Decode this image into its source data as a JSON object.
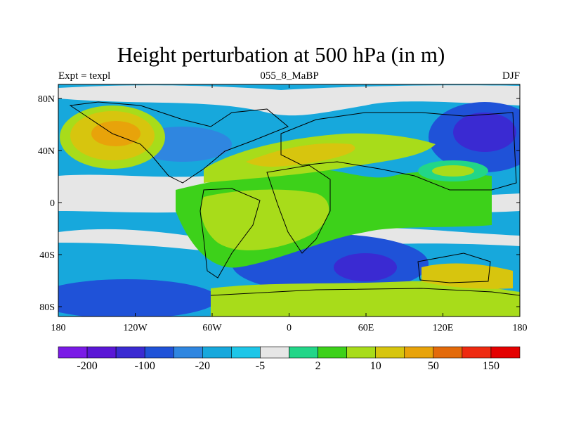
{
  "header": {
    "title": "Height perturbation at 500 hPa (in m)",
    "left": "Expt = texpl",
    "center": "055_8_MaBP",
    "right": "DJF"
  },
  "map": {
    "lon_ticks": [
      "180",
      "120W",
      "60W",
      "0",
      "60E",
      "120E",
      "180"
    ],
    "lat_ticks": [
      "80N",
      "40N",
      "0",
      "40S",
      "80S"
    ],
    "lon_range": [
      -180,
      180
    ],
    "lat_range": [
      -90,
      90
    ]
  },
  "colorbar": {
    "colors": [
      "#7a1ae6",
      "#5a16d6",
      "#3a2ad2",
      "#1f52d8",
      "#2f86e0",
      "#17a8dc",
      "#1ec6e8",
      "#e6e6e6",
      "#22d688",
      "#3dd11a",
      "#a8dc1a",
      "#d7c50e",
      "#e8a30a",
      "#e36a0a",
      "#ee2a10",
      "#e40000"
    ],
    "labels": [
      {
        "text": "-200",
        "boundary": 1
      },
      {
        "text": "-100",
        "boundary": 3
      },
      {
        "text": "-20",
        "boundary": 5
      },
      {
        "text": "-5",
        "boundary": 7
      },
      {
        "text": "2",
        "boundary": 9
      },
      {
        "text": "10",
        "boundary": 11
      },
      {
        "text": "50",
        "boundary": 13
      },
      {
        "text": "150",
        "boundary": 15
      }
    ]
  }
}
